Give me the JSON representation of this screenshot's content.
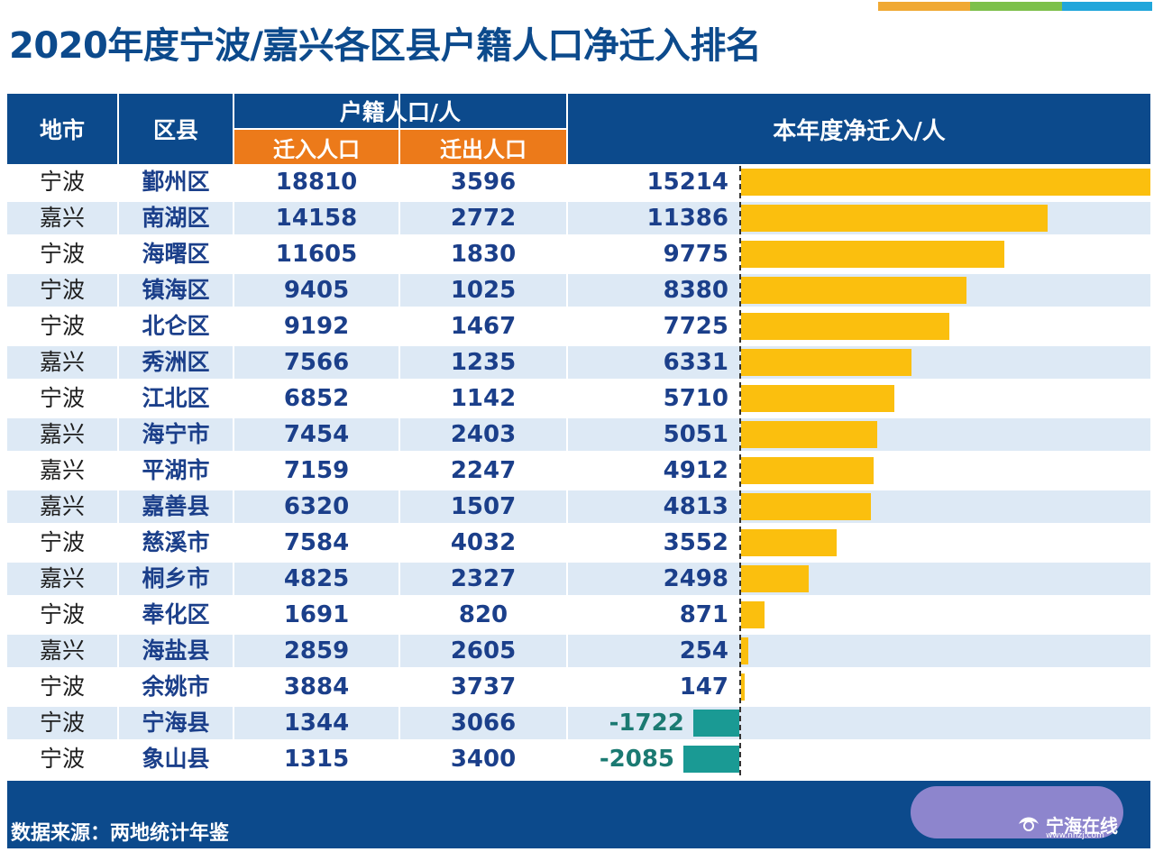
{
  "title": "2020年度宁波/嘉兴各区县户籍人口净迁入排名",
  "colors": {
    "header_blue": "#0c4a8c",
    "subheader_orange": "#ec7a1a",
    "positive_bar": "#fbbf0e",
    "negative_bar": "#1a9a94",
    "row_stripe": "#dde9f5",
    "accent_1": "#f0a934",
    "accent_2": "#7dc04b",
    "accent_3": "#21a6db"
  },
  "header": {
    "city": "地市",
    "district": "区县",
    "group": "户籍人口/人",
    "in_label": "迁入人口",
    "out_label": "迁出人口",
    "net_label": "本年度净迁入/人"
  },
  "chart_data": {
    "type": "bar",
    "orientation": "horizontal",
    "title": "2020年度宁波/嘉兴各区县户籍人口净迁入排名",
    "value_label": "本年度净迁入/人",
    "categories": [
      "鄞州区",
      "南湖区",
      "海曙区",
      "镇海区",
      "北仑区",
      "秀洲区",
      "江北区",
      "海宁市",
      "平湖市",
      "嘉善县",
      "慈溪市",
      "桐乡市",
      "奉化区",
      "海盐县",
      "余姚市",
      "宁海县",
      "象山县"
    ],
    "cities": [
      "宁波",
      "嘉兴",
      "宁波",
      "宁波",
      "宁波",
      "嘉兴",
      "宁波",
      "嘉兴",
      "嘉兴",
      "嘉兴",
      "宁波",
      "嘉兴",
      "宁波",
      "嘉兴",
      "宁波",
      "宁波",
      "宁波"
    ],
    "series": [
      {
        "name": "迁入人口",
        "values": [
          18810,
          14158,
          11605,
          9405,
          9192,
          7566,
          6852,
          7454,
          7159,
          6320,
          7584,
          4825,
          1691,
          2859,
          3884,
          1344,
          1315
        ]
      },
      {
        "name": "迁出人口",
        "values": [
          3596,
          2772,
          1830,
          1025,
          1467,
          1235,
          1142,
          2403,
          2247,
          1507,
          4032,
          2327,
          820,
          2605,
          3737,
          3066,
          3400
        ]
      },
      {
        "name": "本年度净迁入",
        "values": [
          15214,
          11386,
          9775,
          8380,
          7725,
          6331,
          5710,
          5051,
          4912,
          4813,
          3552,
          2498,
          871,
          254,
          147,
          -1722,
          -2085
        ]
      }
    ]
  },
  "footer": {
    "source": "数据来源：两地统计年鉴",
    "watermark": "宁海在线",
    "watermark_url": "www.nhzj.com"
  }
}
